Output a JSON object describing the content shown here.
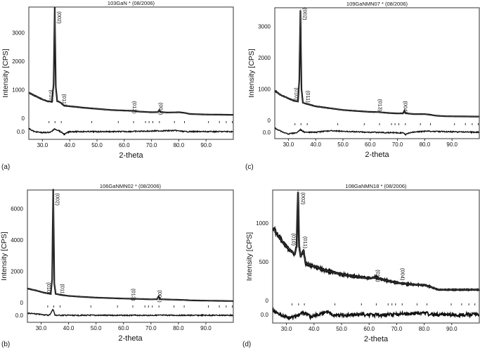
{
  "chart_data": [
    {
      "panel_label": "(a)",
      "type": "line",
      "title": "103GaN  * (08/2006)",
      "xlabel": "2-theta",
      "ylabel": "Intensity [CPS]",
      "xlim": [
        25,
        100
      ],
      "ylim": [
        -250,
        3900
      ],
      "xticks": [
        "30.0",
        "40.0",
        "50.0",
        "60.0",
        "70.0",
        "80.0",
        "90.0"
      ],
      "yticks": [
        0,
        1000,
        2000,
        3000
      ],
      "residual_tick": "0.0",
      "grid": false,
      "profile": [
        [
          25,
          900
        ],
        [
          27,
          800
        ],
        [
          30,
          660
        ],
        [
          32,
          590
        ],
        [
          33.5,
          580
        ],
        [
          34.1,
          1200
        ],
        [
          34.5,
          3850
        ],
        [
          34.9,
          1100
        ],
        [
          35.4,
          600
        ],
        [
          36.5,
          560
        ],
        [
          38,
          440
        ],
        [
          40,
          420
        ],
        [
          45,
          370
        ],
        [
          50,
          330
        ],
        [
          55,
          290
        ],
        [
          60,
          270
        ],
        [
          63,
          260
        ],
        [
          66,
          230
        ],
        [
          70,
          210
        ],
        [
          72.3,
          215
        ],
        [
          72.8,
          280
        ],
        [
          73.3,
          215
        ],
        [
          76,
          200
        ],
        [
          80,
          210
        ],
        [
          82,
          190
        ],
        [
          84,
          150
        ],
        [
          90,
          130
        ],
        [
          100,
          120
        ]
      ],
      "residual": [
        [
          25,
          30
        ],
        [
          27,
          0
        ],
        [
          30,
          -10
        ],
        [
          33,
          -5
        ],
        [
          34.5,
          25
        ],
        [
          36,
          10
        ],
        [
          38,
          -25
        ],
        [
          40,
          0
        ],
        [
          60,
          0
        ],
        [
          79,
          10
        ],
        [
          82,
          0
        ],
        [
          100,
          0
        ]
      ],
      "reflections": [
        32.4,
        34.6,
        36.9,
        48.1,
        57.8,
        63.4,
        67.8,
        69.1,
        70.5,
        72.9,
        78.4,
        82.1,
        90.9,
        94.9,
        97.4,
        99.6
      ],
      "annotations": [
        {
          "text": "(002)",
          "x": 35.6,
          "y": 3750
        },
        {
          "text": "(010)",
          "x": 32.6,
          "y": 1000
        },
        {
          "text": "(011)",
          "x": 37.4,
          "y": 850
        },
        {
          "text": "(013)",
          "x": 63.2,
          "y": 600
        },
        {
          "text": "(004)",
          "x": 72.8,
          "y": 550
        }
      ]
    },
    {
      "panel_label": "(c)",
      "type": "line",
      "title": "109GaNMN07  * (08/2006)",
      "xlabel": "2-theta",
      "ylabel": "Intensity [CPS]",
      "xlim": [
        25,
        100
      ],
      "ylim": [
        -220,
        3600
      ],
      "xticks": [
        "30.0",
        "40.0",
        "50.0",
        "60.0",
        "70.0",
        "80.0",
        "90.0"
      ],
      "yticks": [
        0,
        1000,
        2000,
        3000
      ],
      "residual_tick": "0.0",
      "grid": false,
      "profile": [
        [
          25,
          950
        ],
        [
          27,
          820
        ],
        [
          30,
          700
        ],
        [
          32,
          630
        ],
        [
          33.5,
          600
        ],
        [
          34.0,
          1300
        ],
        [
          34.4,
          3550
        ],
        [
          34.8,
          1000
        ],
        [
          35.3,
          560
        ],
        [
          37,
          520
        ],
        [
          40,
          450
        ],
        [
          45,
          390
        ],
        [
          50,
          330
        ],
        [
          55,
          300
        ],
        [
          60,
          270
        ],
        [
          63,
          265
        ],
        [
          66,
          240
        ],
        [
          70,
          220
        ],
        [
          72.1,
          225
        ],
        [
          72.5,
          300
        ],
        [
          73,
          225
        ],
        [
          76,
          200
        ],
        [
          80,
          200
        ],
        [
          82,
          180
        ],
        [
          84,
          150
        ],
        [
          88,
          130
        ],
        [
          100,
          120
        ]
      ],
      "residual": [
        [
          25,
          40
        ],
        [
          28,
          0
        ],
        [
          30,
          -15
        ],
        [
          33,
          -5
        ],
        [
          34.4,
          25
        ],
        [
          36,
          0
        ],
        [
          40,
          0
        ],
        [
          45,
          15
        ],
        [
          60,
          0
        ],
        [
          72,
          -5
        ],
        [
          73,
          -20
        ],
        [
          75,
          0
        ],
        [
          80,
          10
        ],
        [
          100,
          0
        ]
      ],
      "reflections": [
        32.4,
        34.6,
        36.9,
        48.1,
        57.8,
        63.4,
        67.8,
        69.1,
        70.5,
        72.9,
        78.4,
        82.1,
        90.9,
        94.9,
        97.4,
        99.6
      ],
      "annotations": [
        {
          "text": "(002)",
          "x": 35.5,
          "y": 3600
        },
        {
          "text": "(010)",
          "x": 32.4,
          "y": 1050
        },
        {
          "text": "(011)",
          "x": 36.6,
          "y": 950
        },
        {
          "text": "(013)",
          "x": 63.0,
          "y": 680
        },
        {
          "text": "(004)",
          "x": 72.3,
          "y": 620
        }
      ]
    },
    {
      "panel_label": "(b)",
      "type": "line",
      "title": "106GaNMN02  * (08/2006)",
      "xlabel": "2-theta",
      "ylabel": "Intensity [CPS]",
      "xlim": [
        25,
        100
      ],
      "ylim": [
        -450,
        7200
      ],
      "xticks": [
        "30.0",
        "40.0",
        "50.0",
        "60.0",
        "70.0",
        "80.0",
        "90.0"
      ],
      "yticks": [
        0,
        2000,
        4000,
        6000
      ],
      "residual_tick": "0.0",
      "grid": false,
      "profile": [
        [
          25,
          900
        ],
        [
          28,
          780
        ],
        [
          31,
          640
        ],
        [
          33.5,
          560
        ],
        [
          34.0,
          1500
        ],
        [
          34.4,
          7200
        ],
        [
          34.8,
          1200
        ],
        [
          35.3,
          560
        ],
        [
          37,
          500
        ],
        [
          40,
          430
        ],
        [
          45,
          370
        ],
        [
          50,
          320
        ],
        [
          55,
          290
        ],
        [
          60,
          260
        ],
        [
          65,
          240
        ],
        [
          70,
          210
        ],
        [
          72.2,
          220
        ],
        [
          72.8,
          400
        ],
        [
          73.4,
          220
        ],
        [
          76,
          200
        ],
        [
          82,
          170
        ],
        [
          85,
          140
        ],
        [
          100,
          100
        ]
      ],
      "residual": [
        [
          25,
          20
        ],
        [
          33,
          0
        ],
        [
          34.4,
          60
        ],
        [
          35,
          0
        ],
        [
          100,
          0
        ]
      ],
      "reflections": [
        32.4,
        34.6,
        36.9,
        48.1,
        57.8,
        63.4,
        67.8,
        69.1,
        70.5,
        72.9,
        78.4,
        82.1,
        90.9,
        94.9,
        97.4,
        99.6
      ],
      "annotations": [
        {
          "text": "(002)",
          "x": 35.4,
          "y": 7000
        },
        {
          "text": "(010)",
          "x": 32.2,
          "y": 1300
        },
        {
          "text": "(011)",
          "x": 37.2,
          "y": 1200
        },
        {
          "text": "(013)",
          "x": 63.0,
          "y": 900
        },
        {
          "text": "(004)",
          "x": 72.6,
          "y": 800
        }
      ]
    },
    {
      "panel_label": "(d)",
      "type": "line",
      "title": "108GaNMN18  * (08/2006)",
      "xlabel": "2-theta",
      "ylabel": "Intensity [CPS]",
      "xlim": [
        25,
        100
      ],
      "ylim": [
        -290,
        1430
      ],
      "xticks": [
        "30.0",
        "40.0",
        "50.0",
        "60.0",
        "70.0",
        "80.0",
        "90.0"
      ],
      "yticks": [
        0,
        500,
        1000
      ],
      "residual_tick": "0.0",
      "grid": false,
      "profile": [
        [
          25,
          950
        ],
        [
          27,
          840
        ],
        [
          29,
          740
        ],
        [
          31,
          660
        ],
        [
          33,
          600
        ],
        [
          33.7,
          700
        ],
        [
          34.2,
          1430
        ],
        [
          34.6,
          700
        ],
        [
          35.2,
          560
        ],
        [
          36.2,
          650
        ],
        [
          37,
          480
        ],
        [
          40,
          440
        ],
        [
          45,
          380
        ],
        [
          50,
          340
        ],
        [
          55,
          310
        ],
        [
          60,
          290
        ],
        [
          62.5,
          300
        ],
        [
          65,
          270
        ],
        [
          70,
          230
        ],
        [
          75,
          210
        ],
        [
          80,
          200
        ],
        [
          82,
          180
        ],
        [
          85,
          140
        ],
        [
          90,
          140
        ],
        [
          100,
          140
        ]
      ],
      "residual": [
        [
          25,
          40
        ],
        [
          28,
          0
        ],
        [
          31,
          -30
        ],
        [
          33,
          -20
        ],
        [
          36,
          20
        ],
        [
          39,
          -25
        ],
        [
          42,
          10
        ],
        [
          45,
          25
        ],
        [
          48,
          -10
        ],
        [
          55,
          0
        ],
        [
          65,
          -5
        ],
        [
          80,
          15
        ],
        [
          83,
          0
        ],
        [
          100,
          0
        ]
      ],
      "reflections": [
        32.0,
        34.4,
        36.5,
        47.6,
        57.2,
        62.6,
        66.9,
        68.3,
        69.6,
        72.0,
        77.4,
        81.0,
        89.8,
        93.6,
        96.2,
        98.4
      ],
      "annotations": [
        {
          "text": "(002)",
          "x": 35.4,
          "y": 1400
        },
        {
          "text": "(010)",
          "x": 32.0,
          "y": 870
        },
        {
          "text": "(011)",
          "x": 36.2,
          "y": 830
        },
        {
          "text": "(013)",
          "x": 62.6,
          "y": 400
        },
        {
          "text": "(004)",
          "x": 71.5,
          "y": 420
        }
      ]
    }
  ]
}
